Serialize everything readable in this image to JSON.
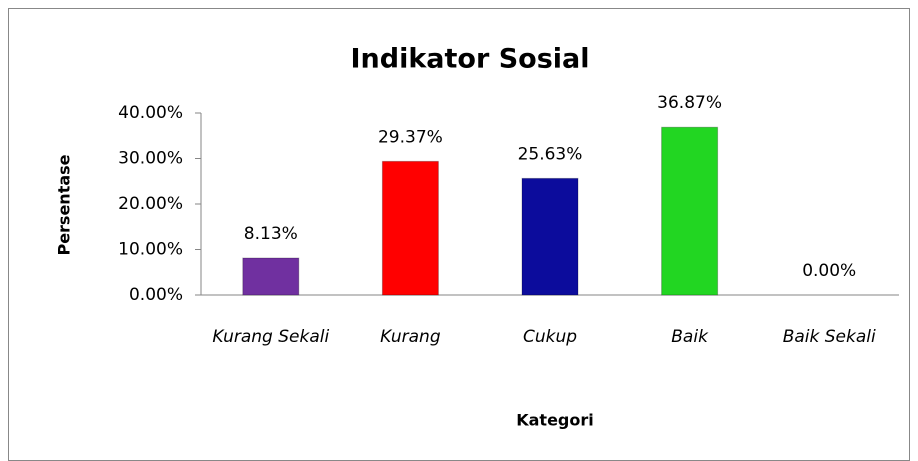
{
  "chart_data": {
    "type": "bar",
    "title": "Indikator Sosial",
    "x_label": "Kategori",
    "y_label": "Persentase",
    "categories": [
      "Kurang Sekali",
      "Kurang",
      "Cukup",
      "Baik",
      "Baik Sekali"
    ],
    "values": [
      8.13,
      29.37,
      25.63,
      36.87,
      0
    ],
    "value_labels": [
      "8.13%",
      "29.37%",
      "25.63%",
      "36.87%",
      "0.00%"
    ],
    "colors": [
      "#7030a0",
      "#ff0000",
      "#0c0c9c",
      "#22d622",
      "#22d622"
    ],
    "ylim": [
      0,
      40
    ],
    "yticks": [
      {
        "value": 0,
        "label": "0.00%"
      },
      {
        "value": 10,
        "label": "10.00%"
      },
      {
        "value": 20,
        "label": "20.00%"
      },
      {
        "value": 30,
        "label": "30.00%"
      },
      {
        "value": 40,
        "label": "40.00%"
      }
    ],
    "grid": false
  }
}
